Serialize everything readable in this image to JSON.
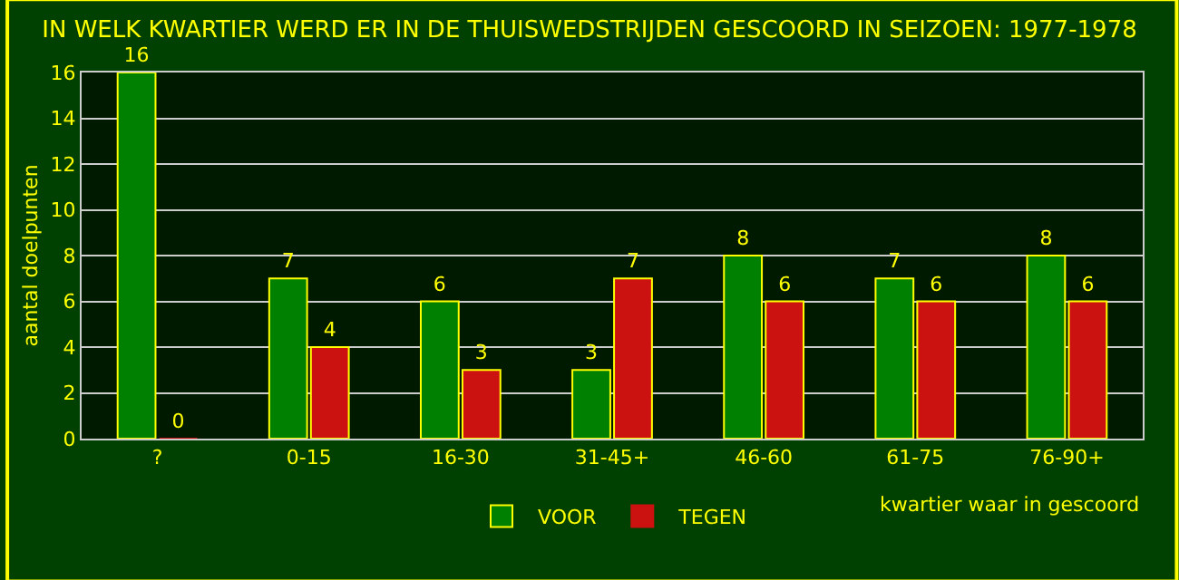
{
  "chart_data": {
    "type": "bar",
    "title": "IN WELK KWARTIER WERD ER IN DE THUISWEDSTRIJDEN GESCOORD IN SEIZOEN: 1977-1978",
    "xlabel": "kwartier waar in gescoord",
    "ylabel": "aantal doelpunten",
    "categories": [
      "?",
      "0-15",
      "16-30",
      "31-45+",
      "46-60",
      "61-75",
      "76-90+"
    ],
    "series": [
      {
        "name": "VOOR",
        "color": "#008000",
        "values": [
          16,
          7,
          6,
          3,
          8,
          7,
          8
        ]
      },
      {
        "name": "TEGEN",
        "color": "#cc1111",
        "values": [
          0,
          4,
          3,
          7,
          6,
          6,
          6
        ]
      }
    ],
    "ylim": [
      0,
      16
    ],
    "yticks": [
      0,
      2,
      4,
      6,
      8,
      10,
      12,
      14,
      16
    ],
    "grid": "y",
    "legend": "bottom",
    "data_labels": true
  }
}
